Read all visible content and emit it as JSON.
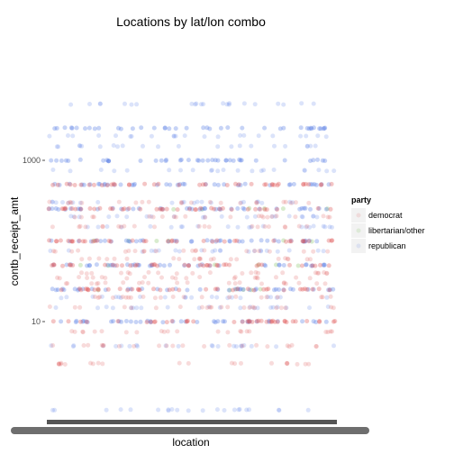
{
  "chart_data": {
    "type": "scatter",
    "title": "Locations by lat/lon combo",
    "xlabel": "location",
    "ylabel": "contb_receipt_amt",
    "y_scale": "log10",
    "ylim": [
      0.5,
      30000
    ],
    "y_ticks": [
      {
        "value": 10,
        "label": "10"
      },
      {
        "value": 1000,
        "label": "1000"
      }
    ],
    "x_tick_labels": "overlapping (unreadable)",
    "grid": false,
    "legend": {
      "title": "party",
      "position": "right",
      "entries": [
        {
          "name": "democrat",
          "color": "#e05a5a"
        },
        {
          "name": "libertarian/other",
          "color": "#63b33d"
        },
        {
          "name": "republican",
          "color": "#5b80e6"
        }
      ]
    },
    "series": [
      {
        "name": "democrat",
        "color": "#e05a5a",
        "amount_levels": [
          3,
          5,
          7.5,
          10,
          15,
          20,
          25,
          30,
          35,
          40,
          50,
          60,
          75,
          100,
          150,
          200,
          250,
          300,
          500
        ],
        "density": "high"
      },
      {
        "name": "republican",
        "color": "#5b80e6",
        "amount_levels": [
          0.8,
          5,
          10,
          15,
          20,
          25,
          50,
          75,
          100,
          150,
          200,
          250,
          300,
          500,
          750,
          1000,
          1500,
          2000,
          2500,
          5000
        ],
        "density": "high"
      },
      {
        "name": "libertarian/other",
        "color": "#63b33d",
        "amount_levels": [
          25,
          50,
          100,
          250
        ],
        "density": "very low"
      }
    ]
  }
}
